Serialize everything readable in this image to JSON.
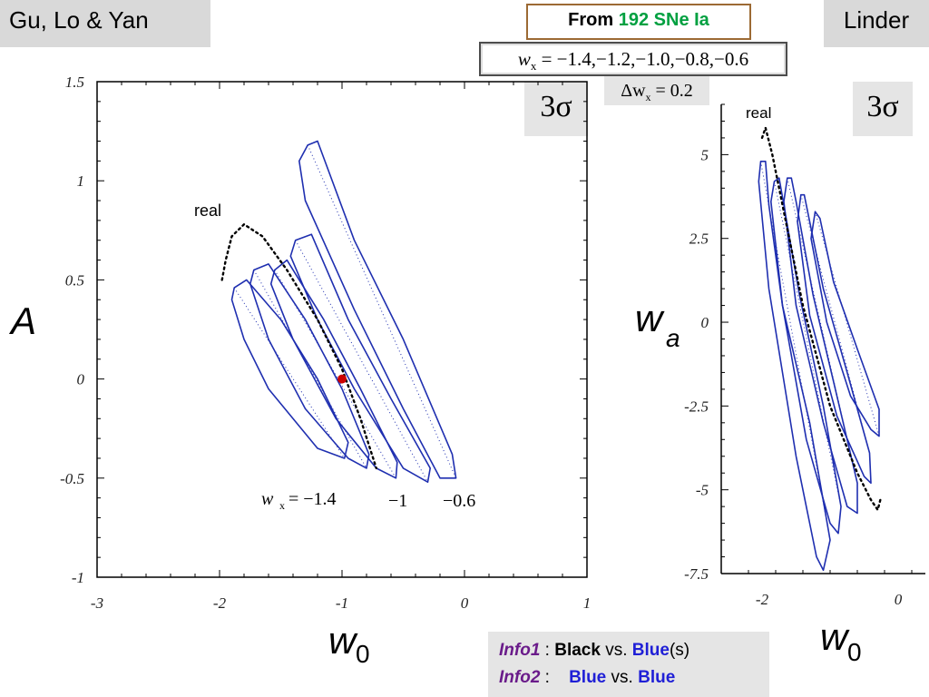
{
  "header": {
    "left_label": "Gu, Lo & Yan",
    "right_label": "Linder",
    "from_prefix": "From ",
    "from_highlight": "192 SNe Ia",
    "wx_var": "w",
    "wx_sub": "x",
    "wx_values": " = −1.4,−1.2,−1.0,−0.8,−0.6",
    "dw_prefix": "Δw",
    "dw_sub": "x",
    "dw_value": " = 0.2",
    "sigma_left": "3σ",
    "sigma_right": "3σ"
  },
  "info": {
    "line1_tag": "Info1",
    "line1_sep": " : ",
    "line1_a": "Black",
    "line1_vs": " vs. ",
    "line1_b": "Blue",
    "line1_suffix": "(s)",
    "line2_tag": "Info2",
    "line2_sep": " :    ",
    "line2_a": "Blue",
    "line2_vs": " vs. ",
    "line2_b": "Blue"
  },
  "colors": {
    "contour": "#1f2fb0",
    "real": "#000000",
    "point": "#cc0000"
  },
  "chart_data": [
    {
      "type": "line",
      "xlabel": "w",
      "xlabel_sub": "0",
      "ylabel": "A",
      "xlim": [
        -3,
        1
      ],
      "ylim": [
        -1,
        1.5
      ],
      "xticks": [
        -3,
        -2,
        -1,
        0,
        1
      ],
      "xtick_labels": [
        "-3",
        "-2",
        "-1",
        "0",
        "1"
      ],
      "yticks": [
        -1,
        -0.5,
        0,
        0.5,
        1,
        1.5
      ],
      "ytick_labels": [
        "-1",
        "-0.5",
        "0",
        "0.5",
        "1",
        "1.5"
      ],
      "annotations": {
        "real": "real",
        "wx_lbl_var": "w",
        "wx_lbl_sub": "x",
        "wx_lbl_val": " = −1.4",
        "mid_lbl": "−1",
        "right_lbl": "−0.6"
      },
      "fiducial_point": {
        "x": -1.0,
        "y": 0.0
      },
      "series": [
        {
          "name": "w_x = -1.4",
          "path": [
            [
              -1.88,
              0.46
            ],
            [
              -1.9,
              0.4
            ],
            [
              -1.8,
              0.2
            ],
            [
              -1.6,
              -0.05
            ],
            [
              -1.2,
              -0.35
            ],
            [
              -0.98,
              -0.4
            ],
            [
              -0.95,
              -0.32
            ],
            [
              -1.2,
              0.0
            ],
            [
              -1.5,
              0.3
            ],
            [
              -1.78,
              0.5
            ],
            [
              -1.88,
              0.46
            ]
          ]
        },
        {
          "name": "w_x = -1.2",
          "path": [
            [
              -1.72,
              0.55
            ],
            [
              -1.75,
              0.48
            ],
            [
              -1.6,
              0.2
            ],
            [
              -1.3,
              -0.15
            ],
            [
              -0.95,
              -0.4
            ],
            [
              -0.8,
              -0.45
            ],
            [
              -0.78,
              -0.38
            ],
            [
              -1.0,
              -0.05
            ],
            [
              -1.3,
              0.3
            ],
            [
              -1.6,
              0.58
            ],
            [
              -1.72,
              0.55
            ]
          ]
        },
        {
          "name": "w_x = -1.0",
          "path": [
            [
              -1.55,
              0.55
            ],
            [
              -1.58,
              0.48
            ],
            [
              -1.4,
              0.2
            ],
            [
              -1.05,
              -0.2
            ],
            [
              -0.72,
              -0.45
            ],
            [
              -0.56,
              -0.5
            ],
            [
              -0.55,
              -0.42
            ],
            [
              -0.85,
              -0.05
            ],
            [
              -1.15,
              0.3
            ],
            [
              -1.45,
              0.6
            ],
            [
              -1.55,
              0.55
            ]
          ]
        },
        {
          "name": "w_x = -0.8",
          "path": [
            [
              -1.38,
              0.7
            ],
            [
              -1.42,
              0.62
            ],
            [
              -1.2,
              0.3
            ],
            [
              -0.9,
              -0.05
            ],
            [
              -0.5,
              -0.45
            ],
            [
              -0.3,
              -0.52
            ],
            [
              -0.28,
              -0.45
            ],
            [
              -0.6,
              -0.1
            ],
            [
              -0.95,
              0.3
            ],
            [
              -1.25,
              0.73
            ],
            [
              -1.38,
              0.7
            ]
          ]
        },
        {
          "name": "w_x = -0.6",
          "path": [
            [
              -1.28,
              1.18
            ],
            [
              -1.35,
              1.1
            ],
            [
              -1.3,
              0.9
            ],
            [
              -0.9,
              0.35
            ],
            [
              -0.5,
              -0.15
            ],
            [
              -0.2,
              -0.5
            ],
            [
              -0.07,
              -0.5
            ],
            [
              -0.1,
              -0.38
            ],
            [
              -0.5,
              0.2
            ],
            [
              -0.9,
              0.7
            ],
            [
              -1.2,
              1.2
            ],
            [
              -1.28,
              1.18
            ]
          ]
        }
      ],
      "real_path": [
        [
          -1.98,
          0.5
        ],
        [
          -1.95,
          0.6
        ],
        [
          -1.9,
          0.72
        ],
        [
          -1.8,
          0.78
        ],
        [
          -1.65,
          0.72
        ],
        [
          -1.45,
          0.55
        ],
        [
          -1.2,
          0.3
        ],
        [
          -1.0,
          0.05
        ],
        [
          -0.85,
          -0.2
        ],
        [
          -0.72,
          -0.45
        ]
      ]
    },
    {
      "type": "line",
      "xlabel": "w",
      "xlabel_sub": "0",
      "ylabel": "w",
      "ylabel_sub": "a",
      "xlim": [
        -2.6,
        0.4
      ],
      "ylim": [
        -7.5,
        6.5
      ],
      "xticks": [
        -2,
        0
      ],
      "xtick_labels": [
        "-2",
        "0"
      ],
      "yticks": [
        -7.5,
        -5,
        -2.5,
        0,
        2.5,
        5
      ],
      "ytick_labels": [
        "-7.5",
        "-5",
        "-2.5",
        "0",
        "2.5",
        "5"
      ],
      "annotations": {
        "real": "real"
      },
      "series": [
        {
          "name": "w_x = -1.4",
          "path": [
            [
              -2.02,
              4.8
            ],
            [
              -2.05,
              4.2
            ],
            [
              -1.9,
              1.0
            ],
            [
              -1.5,
              -4.0
            ],
            [
              -1.2,
              -7.0
            ],
            [
              -1.1,
              -7.4
            ],
            [
              -1.0,
              -6.5
            ],
            [
              -1.3,
              -3.0
            ],
            [
              -1.7,
              0.5
            ],
            [
              -1.9,
              3.5
            ],
            [
              -1.95,
              4.8
            ],
            [
              -2.02,
              4.8
            ]
          ]
        },
        {
          "name": "w_x = -1.2",
          "path": [
            [
              -1.82,
              4.2
            ],
            [
              -1.87,
              3.6
            ],
            [
              -1.7,
              0.5
            ],
            [
              -1.35,
              -3.5
            ],
            [
              -1.0,
              -6.0
            ],
            [
              -0.88,
              -6.3
            ],
            [
              -0.84,
              -5.5
            ],
            [
              -1.1,
              -2.5
            ],
            [
              -1.45,
              0.8
            ],
            [
              -1.68,
              3.5
            ],
            [
              -1.75,
              4.3
            ],
            [
              -1.82,
              4.2
            ]
          ]
        },
        {
          "name": "w_x = -1.0",
          "path": [
            [
              -1.63,
              4.3
            ],
            [
              -1.68,
              3.6
            ],
            [
              -1.5,
              0.5
            ],
            [
              -1.1,
              -3.0
            ],
            [
              -0.75,
              -5.5
            ],
            [
              -0.6,
              -5.7
            ],
            [
              -0.6,
              -4.8
            ],
            [
              -0.9,
              -2.2
            ],
            [
              -1.25,
              0.8
            ],
            [
              -1.5,
              3.6
            ],
            [
              -1.57,
              4.3
            ],
            [
              -1.63,
              4.3
            ]
          ]
        },
        {
          "name": "w_x = -0.8",
          "path": [
            [
              -1.43,
              3.8
            ],
            [
              -1.48,
              3.0
            ],
            [
              -1.3,
              0.2
            ],
            [
              -0.9,
              -2.8
            ],
            [
              -0.5,
              -4.6
            ],
            [
              -0.4,
              -4.8
            ],
            [
              -0.42,
              -3.9
            ],
            [
              -0.75,
              -1.5
            ],
            [
              -1.1,
              1.0
            ],
            [
              -1.32,
              3.2
            ],
            [
              -1.38,
              3.8
            ],
            [
              -1.43,
              3.8
            ]
          ]
        },
        {
          "name": "w_x = -0.6",
          "path": [
            [
              -1.22,
              3.3
            ],
            [
              -1.28,
              2.5
            ],
            [
              -1.05,
              0.0
            ],
            [
              -0.7,
              -2.2
            ],
            [
              -0.4,
              -3.2
            ],
            [
              -0.28,
              -3.4
            ],
            [
              -0.28,
              -2.6
            ],
            [
              -0.6,
              -0.8
            ],
            [
              -0.95,
              1.2
            ],
            [
              -1.15,
              3.1
            ],
            [
              -1.22,
              3.3
            ]
          ]
        }
      ],
      "real_path": [
        [
          -2.0,
          5.5
        ],
        [
          -1.95,
          5.8
        ],
        [
          -1.85,
          5.0
        ],
        [
          -1.7,
          3.5
        ],
        [
          -1.4,
          0.5
        ],
        [
          -1.0,
          -2.5
        ],
        [
          -0.6,
          -4.5
        ],
        [
          -0.4,
          -5.3
        ],
        [
          -0.3,
          -5.6
        ],
        [
          -0.25,
          -5.2
        ]
      ]
    }
  ]
}
